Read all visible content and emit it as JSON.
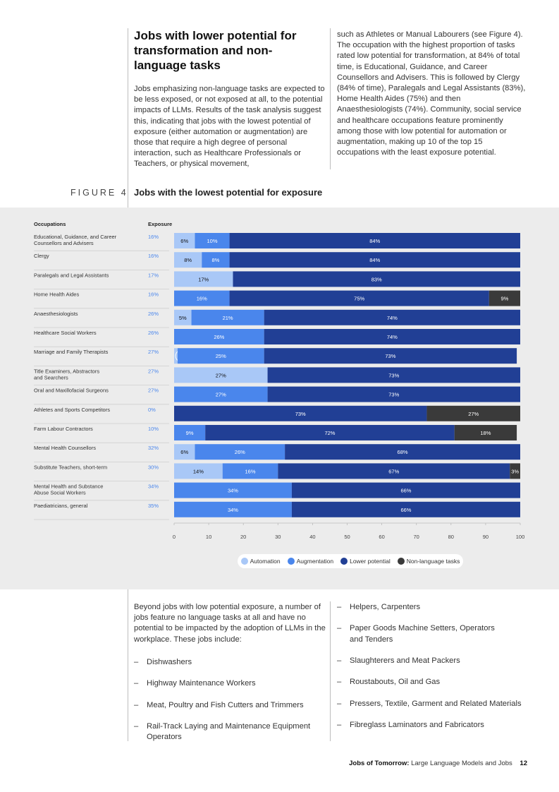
{
  "section_heading": "Jobs with lower potential for transformation and non-language tasks",
  "intro_col1": "Jobs emphasizing non-language tasks are expected to be less exposed, or not exposed at all, to the potential impacts of LLMs. Results of the task analysis suggest this, indicating that jobs with the lowest potential of exposure (either automation or augmentation) are those that require a high degree of personal interaction, such as Healthcare Professionals or Teachers, or physical movement,",
  "intro_col2": "such as Athletes or Manual Labourers (see Figure 4). The occupation with the highest proportion of tasks rated low potential for transformation, at 84% of total time, is Educational, Guidance, and Career Counsellors and Advisers. This is followed by Clergy (84% of time), Paralegals and Legal Assistants (83%), Home Health Aides (75%) and then Anaesthesiologists (74%). Community, social service and healthcare occupations feature prominently among those with low potential for automation or augmentation, making up 10 of the top 15 occupations with the least exposure potential.",
  "figure_label": "FIGURE 4",
  "figure_title": "Jobs with the lowest potential for exposure",
  "chart_data": {
    "type": "bar",
    "orientation": "horizontal",
    "stacked": true,
    "title": "Jobs with the lowest potential for exposure",
    "column_headers": {
      "occupations": "Occupations",
      "exposure": "Exposure"
    },
    "categories": [
      "Educational, Guidance, and Career Counsellors and Advisers",
      "Clergy",
      "Paralegals and Legal Assistants",
      "Home Health Aides",
      "Anaesthesiologists",
      "Healthcare Social Workers",
      "Marriage and Family Therapists",
      "Title Examiners, Abstractors and Searchers",
      "Oral and Maxillofacial Surgeons",
      "Athletes and Sports Competitors",
      "Farm Labour Contractors",
      "Mental Health Counsellors",
      "Substitute Teachers, short-term",
      "Mental Health and Substance Abuse Social Workers",
      "Paediatricians, general"
    ],
    "category_lines": [
      [
        "Educational, Guidance, and Career",
        "Counsellors and Advisers"
      ],
      [
        "Clergy"
      ],
      [
        "Paralegals and Legal Assistants"
      ],
      [
        "Home Health Aides"
      ],
      [
        "Anaesthesiologists"
      ],
      [
        "Healthcare Social Workers"
      ],
      [
        "Marriage and Family Therapists"
      ],
      [
        "Title Examiners, Abstractors",
        "and Searchers"
      ],
      [
        "Oral and Maxillofacial Surgeons"
      ],
      [
        "Athletes and Sports Competitors"
      ],
      [
        "Farm Labour Contractors"
      ],
      [
        "Mental Health Counsellors"
      ],
      [
        "Substitute Teachers, short-term"
      ],
      [
        "Mental Health and Substance",
        "Abuse Social Workers"
      ],
      [
        "Paediatricians, general"
      ]
    ],
    "exposure": [
      "16%",
      "16%",
      "17%",
      "16%",
      "26%",
      "26%",
      "27%",
      "27%",
      "27%",
      "0%",
      "10%",
      "32%",
      "30%",
      "34%",
      "35%"
    ],
    "series": [
      {
        "name": "Automation",
        "color": "#a9c8f7",
        "values": [
          6,
          8,
          17,
          0,
          5,
          0,
          1,
          27,
          0,
          0,
          0,
          6,
          14,
          0,
          0
        ]
      },
      {
        "name": "Augmentation",
        "color": "#4a86ec",
        "values": [
          10,
          8,
          0,
          16,
          21,
          26,
          25,
          0,
          27,
          0,
          9,
          26,
          16,
          34,
          34
        ]
      },
      {
        "name": "Lower potential",
        "color": "#213f95",
        "values": [
          84,
          84,
          83,
          75,
          74,
          74,
          73,
          73,
          73,
          73,
          72,
          68,
          67,
          66,
          66
        ]
      },
      {
        "name": "Non-language tasks",
        "color": "#3a3a3a",
        "values": [
          0,
          0,
          0,
          9,
          0,
          0,
          0,
          0,
          0,
          27,
          18,
          0,
          3,
          0,
          0
        ]
      }
    ],
    "xlim": [
      0,
      100
    ],
    "xticks": [
      0,
      10,
      20,
      30,
      40,
      50,
      60,
      70,
      80,
      90,
      100
    ],
    "legend": "bottom-center"
  },
  "outro_text": "Beyond jobs with low potential exposure, a number of jobs feature no language tasks at all and have no potential to be impacted by the adoption of LLMs in the workplace. These jobs include:",
  "list_col1": [
    "Dishwashers",
    "Highway Maintenance Workers",
    "Meat, Poultry and Fish Cutters and Trimmers",
    "Rail-Track Laying and Maintenance Equipment Operators"
  ],
  "list_col2": [
    "Helpers, Carpenters",
    "Paper Goods Machine Setters, Operators and Tenders",
    "Slaughterers and Meat Packers",
    "Roustabouts, Oil and Gas",
    "Pressers, Textile, Garment and Related Materials",
    "Fibreglass Laminators and Fabricators"
  ],
  "footer": {
    "publication": "Jobs of Tomorrow:",
    "subtitle": "Large Language Models and Jobs",
    "page": "12"
  }
}
